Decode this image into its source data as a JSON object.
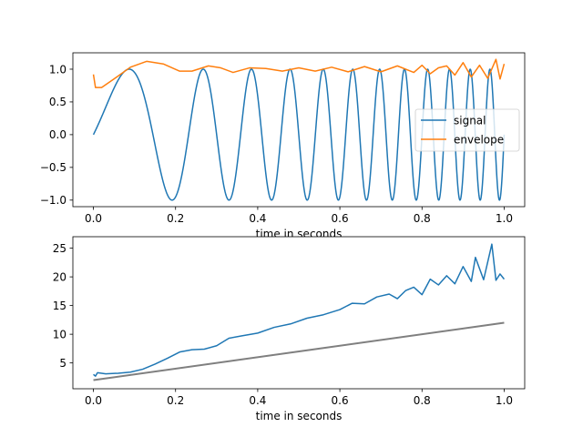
{
  "chart_data": [
    {
      "type": "line",
      "title": "",
      "xlabel": "time in seconds",
      "ylabel": "",
      "xlim": [
        -0.05,
        1.05
      ],
      "ylim": [
        -1.1,
        1.25
      ],
      "xticks": [
        0.0,
        0.2,
        0.4,
        0.6,
        0.8,
        1.0
      ],
      "xtick_labels": [
        "0.0",
        "0.2",
        "0.4",
        "0.6",
        "0.8",
        "1.0"
      ],
      "yticks": [
        -1.0,
        -0.5,
        0.0,
        0.5,
        1.0
      ],
      "ytick_labels": [
        "−1.0",
        "−0.5",
        "0.0",
        "0.5",
        "1.0"
      ],
      "grid": false,
      "legend": {
        "placement": "center-right"
      },
      "series": [
        {
          "name": "signal",
          "color": "#1f77b4",
          "description_kind": "chirp",
          "frequency_start_hz": 2,
          "frequency_end_hz": 22,
          "amplitude": 1.0,
          "x_range": [
            0.0,
            1.0
          ]
        },
        {
          "name": "envelope",
          "color": "#ff7f0e",
          "x": [
            0.0,
            0.005,
            0.02,
            0.05,
            0.09,
            0.13,
            0.17,
            0.21,
            0.24,
            0.28,
            0.31,
            0.34,
            0.38,
            0.42,
            0.46,
            0.5,
            0.54,
            0.58,
            0.62,
            0.66,
            0.7,
            0.74,
            0.78,
            0.8,
            0.82,
            0.84,
            0.86,
            0.88,
            0.9,
            0.92,
            0.94,
            0.96,
            0.98,
            0.99,
            1.0
          ],
          "y": [
            0.92,
            0.72,
            0.72,
            0.85,
            1.03,
            1.12,
            1.08,
            0.97,
            0.97,
            1.05,
            1.02,
            0.95,
            1.02,
            1.01,
            0.97,
            1.02,
            0.97,
            1.03,
            0.96,
            1.04,
            0.96,
            1.05,
            0.95,
            1.06,
            0.93,
            1.02,
            1.05,
            0.91,
            1.1,
            0.88,
            1.06,
            0.86,
            1.15,
            0.85,
            1.08
          ]
        }
      ]
    },
    {
      "type": "line",
      "title": "",
      "xlabel": "time in seconds",
      "ylabel": "",
      "xlim": [
        -0.05,
        1.05
      ],
      "ylim": [
        0.5,
        27.0
      ],
      "xticks": [
        0.0,
        0.2,
        0.4,
        0.6,
        0.8,
        1.0
      ],
      "xtick_labels": [
        "0.0",
        "0.2",
        "0.4",
        "0.6",
        "0.8",
        "1.0"
      ],
      "yticks": [
        5,
        10,
        15,
        20,
        25
      ],
      "ytick_labels": [
        "5",
        "10",
        "15",
        "20",
        "25"
      ],
      "grid": false,
      "series": [
        {
          "color": "#1f77b4",
          "description_kind": "instantaneous_frequency",
          "x": [
            0.0,
            0.005,
            0.01,
            0.03,
            0.06,
            0.09,
            0.12,
            0.15,
            0.18,
            0.21,
            0.24,
            0.27,
            0.3,
            0.33,
            0.36,
            0.4,
            0.44,
            0.48,
            0.52,
            0.56,
            0.6,
            0.63,
            0.66,
            0.69,
            0.72,
            0.74,
            0.76,
            0.78,
            0.8,
            0.82,
            0.84,
            0.86,
            0.88,
            0.9,
            0.92,
            0.93,
            0.95,
            0.97,
            0.98,
            0.99,
            1.0
          ],
          "y": [
            3.0,
            2.7,
            3.3,
            3.1,
            3.2,
            3.4,
            3.9,
            4.8,
            5.8,
            6.9,
            7.3,
            7.4,
            8.0,
            9.3,
            9.7,
            10.2,
            11.2,
            11.8,
            12.8,
            13.4,
            14.3,
            15.4,
            15.3,
            16.5,
            17.0,
            16.2,
            17.6,
            18.2,
            16.9,
            19.6,
            18.6,
            20.2,
            18.8,
            21.8,
            19.2,
            23.4,
            19.5,
            25.7,
            19.4,
            20.5,
            19.6
          ]
        },
        {
          "color": "#7f7f7f",
          "description_kind": "linear_reference",
          "x": [
            0.0,
            1.0
          ],
          "y": [
            2.0,
            12.0
          ]
        }
      ]
    }
  ]
}
